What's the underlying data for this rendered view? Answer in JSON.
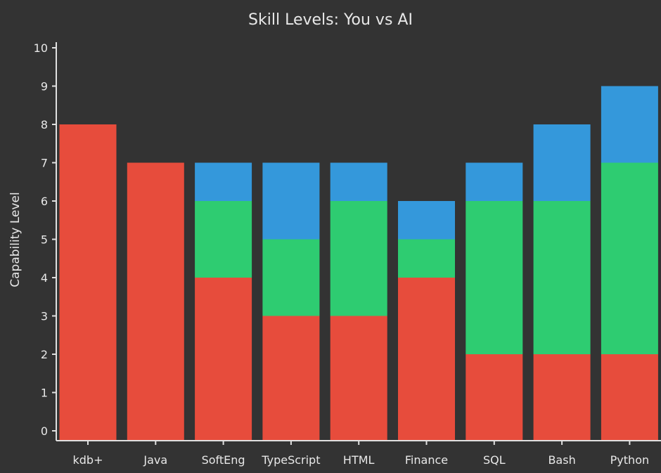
{
  "chart_data": {
    "type": "bar",
    "stacked": true,
    "title": "Skill Levels: You vs AI",
    "xlabel": "",
    "ylabel": "Capability Level",
    "ylim": [
      0,
      10
    ],
    "yticks": [
      0,
      1,
      2,
      3,
      4,
      5,
      6,
      7,
      8,
      9,
      10
    ],
    "grid": false,
    "legend": "none",
    "categories": [
      "kdb+",
      "Java",
      "SoftEng",
      "TypeScript",
      "HTML",
      "Finance",
      "SQL",
      "Bash",
      "Python"
    ],
    "series": [
      {
        "color": "#e74c3c",
        "values": [
          8,
          7,
          4,
          3,
          3,
          4,
          2,
          2,
          2
        ]
      },
      {
        "color": "#2ecc71",
        "values": [
          0,
          0,
          2,
          2,
          3,
          1,
          4,
          4,
          5
        ]
      },
      {
        "color": "#3498db",
        "values": [
          0,
          0,
          1,
          2,
          1,
          1,
          1,
          2,
          2
        ]
      }
    ]
  }
}
